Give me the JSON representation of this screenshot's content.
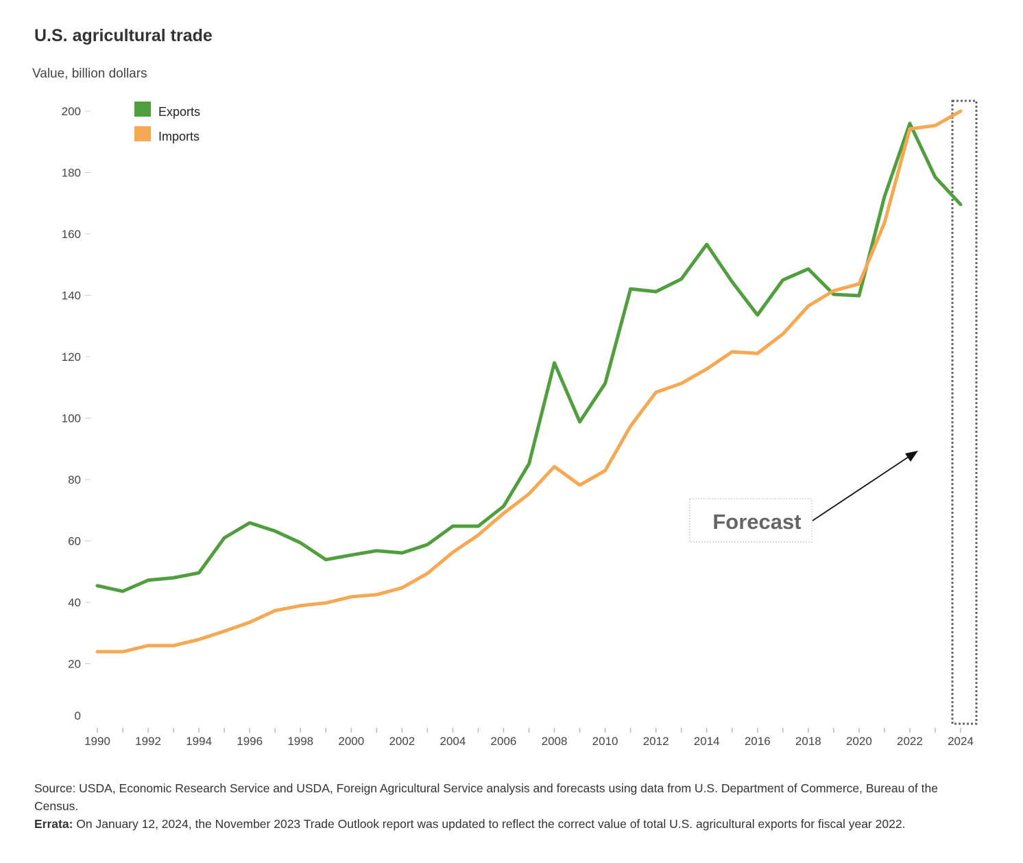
{
  "chart_data": {
    "type": "line",
    "title": "U.S. agricultural trade",
    "ylabel": "Value, billion dollars",
    "xlabel": "",
    "ylim": [
      0,
      200
    ],
    "yticks": [
      0,
      20,
      40,
      60,
      80,
      100,
      120,
      140,
      160,
      180,
      200
    ],
    "xlim": [
      1990,
      2024
    ],
    "xtick_labels": [
      1990,
      1992,
      1994,
      1996,
      1998,
      2000,
      2002,
      2004,
      2006,
      2008,
      2010,
      2012,
      2014,
      2016,
      2018,
      2020,
      2022,
      2024
    ],
    "grid": false,
    "legend_position": "top-left",
    "x": [
      1990,
      1991,
      1992,
      1993,
      1994,
      1995,
      1996,
      1997,
      1998,
      1999,
      2000,
      2001,
      2002,
      2003,
      2004,
      2005,
      2006,
      2007,
      2008,
      2009,
      2010,
      2011,
      2012,
      2013,
      2014,
      2015,
      2016,
      2017,
      2018,
      2019,
      2020,
      2021,
      2022,
      2023,
      2024
    ],
    "series": [
      {
        "name": "Exports",
        "color": "#509e3e",
        "values": [
          45.4,
          43.6,
          47.2,
          48.0,
          49.6,
          61.0,
          65.9,
          63.2,
          59.4,
          53.9,
          55.4,
          56.8,
          56.1,
          58.8,
          64.8,
          64.8,
          71.3,
          85.1,
          118.0,
          98.8,
          111.3,
          142.1,
          141.2,
          145.3,
          156.6,
          144.4,
          133.6,
          145.0,
          148.6,
          140.3,
          139.9,
          172.1,
          196.0,
          178.5,
          169.6
        ]
      },
      {
        "name": "Imports",
        "color": "#f6a852",
        "values": [
          23.9,
          23.9,
          25.9,
          25.9,
          27.9,
          30.6,
          33.5,
          37.3,
          38.9,
          39.8,
          41.8,
          42.5,
          44.7,
          49.4,
          56.3,
          61.9,
          69.0,
          75.3,
          84.2,
          78.2,
          82.9,
          97.4,
          108.4,
          111.3,
          116.0,
          121.6,
          121.1,
          127.4,
          136.5,
          141.5,
          143.7,
          163.6,
          194.2,
          195.3,
          200.0
        ]
      }
    ],
    "annotations": [
      {
        "text": "Forecast",
        "target_year": 2024
      }
    ]
  },
  "footer": {
    "source": "Source: USDA, Economic Research Service and USDA, Foreign Agricultural Service analysis and forecasts using data from U.S. Department of Commerce, Bureau of the Census.",
    "errata_label": "Errata:",
    "errata_text": " On January 12, 2024, the November 2023 Trade Outlook report was updated to reflect the correct value of total U.S. agricultural exports for fiscal year 2022."
  }
}
